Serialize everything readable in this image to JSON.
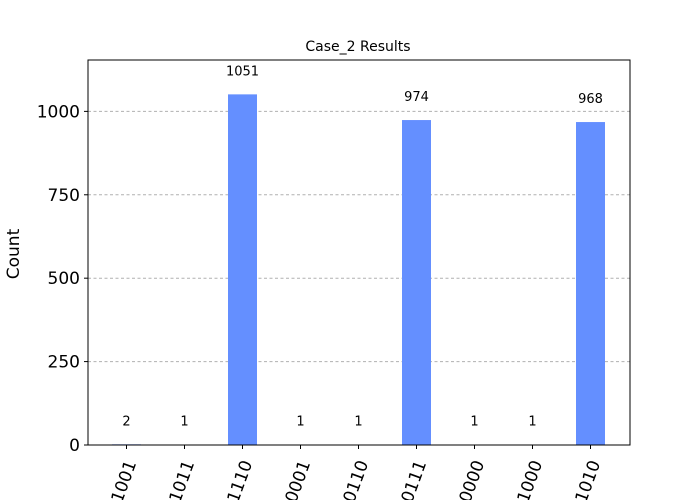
{
  "chart_data": {
    "type": "bar",
    "title": "Case_2 Results",
    "xlabel": "",
    "ylabel": "Count",
    "categories": [
      "1001",
      "1011",
      "1110",
      "0001",
      "0110",
      "0111",
      "0000",
      "1000",
      "1010"
    ],
    "values": [
      2,
      1,
      1051,
      1,
      1,
      974,
      1,
      1,
      968
    ],
    "data_labels": [
      "2",
      "1",
      "1051",
      "1",
      "1",
      "974",
      "1",
      "1",
      "968"
    ],
    "yticks": [
      0,
      250,
      500,
      750,
      1000
    ],
    "ytick_labels": [
      "0",
      "250",
      "500",
      "750",
      "1000"
    ],
    "ylim": [
      0,
      1154
    ],
    "grid": "horizontal dashed",
    "legend": "none",
    "bar_color": "#648fff"
  }
}
